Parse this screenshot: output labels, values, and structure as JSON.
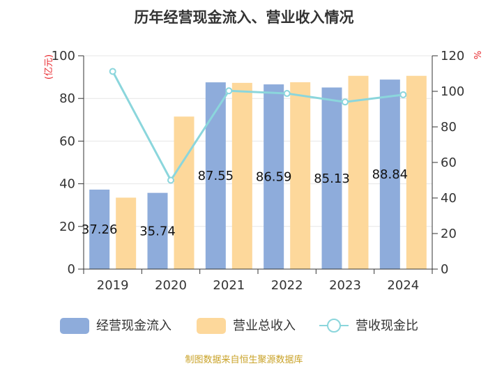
{
  "chart_data": {
    "type": "bar",
    "title": "历年经营现金流入、营业收入情况",
    "categories": [
      "2019",
      "2020",
      "2021",
      "2022",
      "2023",
      "2024"
    ],
    "series": [
      {
        "name": "经营现金流入",
        "kind": "bar",
        "axis": "left",
        "color": "#8eacdb",
        "values": [
          37.26,
          35.74,
          87.55,
          86.59,
          85.13,
          88.84
        ],
        "labels": [
          "37.26",
          "35.74",
          "87.55",
          "86.59",
          "85.13",
          "88.84"
        ]
      },
      {
        "name": "营业总收入",
        "kind": "bar",
        "axis": "left",
        "color": "#fdd89b",
        "values": [
          33.5,
          71.5,
          87.3,
          87.6,
          90.6,
          90.6
        ]
      },
      {
        "name": "营收现金比",
        "kind": "line",
        "axis": "right",
        "color": "#8bd6dc",
        "values": [
          111.2,
          50.0,
          100.3,
          98.8,
          94.0,
          98.1
        ]
      }
    ],
    "y_left": {
      "label": "(亿元)",
      "min": 0,
      "max": 100,
      "ticks": [
        0,
        20,
        40,
        60,
        80,
        100
      ]
    },
    "y_right": {
      "label": "%",
      "min": 0,
      "max": 120,
      "ticks": [
        0,
        20,
        40,
        60,
        80,
        100,
        120
      ]
    },
    "grid": true,
    "legend_position": "bottom"
  },
  "source": "制图数据来自恒生聚源数据库"
}
